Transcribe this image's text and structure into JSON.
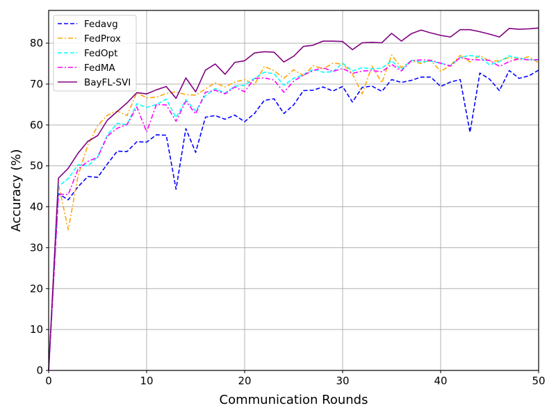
{
  "chart_data": {
    "type": "line",
    "title": "",
    "xlabel": "Communication Rounds",
    "ylabel": "Accuracy (%)",
    "xlim": [
      0,
      50
    ],
    "ylim": [
      0,
      88
    ],
    "xticks": [
      0,
      10,
      20,
      30,
      40,
      50
    ],
    "yticks": [
      0,
      10,
      20,
      30,
      40,
      50,
      60,
      70,
      80
    ],
    "grid": true,
    "legend_position": "top-left",
    "x": [
      0,
      1,
      2,
      3,
      4,
      5,
      6,
      7,
      8,
      9,
      10,
      11,
      12,
      13,
      14,
      15,
      16,
      17,
      18,
      19,
      20,
      21,
      22,
      23,
      24,
      25,
      26,
      27,
      28,
      29,
      30,
      31,
      32,
      33,
      34,
      35,
      36,
      37,
      38,
      39,
      40,
      41,
      42,
      43,
      44,
      45,
      46,
      47,
      48,
      49,
      50
    ],
    "series": [
      {
        "name": "Fedavg",
        "color": "#0000ff",
        "linestyle": "dashed",
        "values": [
          0,
          43.2,
          41.7,
          44.9,
          47.4,
          47.2,
          50.5,
          53.6,
          53.5,
          55.9,
          55.8,
          57.6,
          57.5,
          44.3,
          59.1,
          53.3,
          61.9,
          62.3,
          61.4,
          62.4,
          60.8,
          62.8,
          66.0,
          66.4,
          62.8,
          64.9,
          68.4,
          68.5,
          69.3,
          68.3,
          69.4,
          65.6,
          69.2,
          69.5,
          68.2,
          71.1,
          70.4,
          70.9,
          71.7,
          71.7,
          69.4,
          70.5,
          71.1,
          58.2,
          72.7,
          71.2,
          68.4,
          73.3,
          71.4,
          72.0,
          73.4
        ]
      },
      {
        "name": "FedProx",
        "color": "#ffa500",
        "linestyle": "dashdot",
        "values": [
          0,
          45.5,
          34.4,
          47.6,
          55.1,
          59.8,
          62.4,
          63.4,
          62.3,
          67.9,
          66.6,
          66.8,
          67.7,
          68.1,
          67.4,
          67.3,
          68.8,
          70.3,
          69.3,
          70.5,
          71.1,
          69.8,
          74.3,
          73.3,
          71.4,
          73.5,
          72.1,
          74.5,
          73.7,
          75.1,
          74.9,
          72.5,
          67.6,
          74.4,
          70.3,
          77.1,
          74.0,
          75.7,
          75.0,
          75.8,
          73.1,
          74.6,
          77.0,
          75.4,
          77.0,
          75.6,
          75.7,
          76.5,
          76.0,
          76.7,
          75.2
        ]
      },
      {
        "name": "FedOpt",
        "color": "#00ffff",
        "linestyle": "dashed",
        "values": [
          0,
          45.0,
          46.9,
          50.3,
          50.0,
          52.2,
          57.6,
          60.4,
          60.1,
          65.2,
          64.3,
          65.0,
          66.3,
          61.8,
          66.2,
          63.4,
          67.2,
          68.9,
          67.8,
          69.5,
          69.7,
          71.4,
          72.9,
          72.5,
          69.7,
          71.4,
          72.3,
          73.6,
          72.9,
          73.0,
          75.1,
          73.2,
          74.0,
          73.7,
          73.9,
          75.7,
          73.5,
          75.8,
          75.4,
          75.6,
          75.1,
          74.5,
          76.5,
          77.0,
          76.6,
          74.7,
          75.5,
          76.9,
          76.3,
          76.0,
          75.8
        ]
      },
      {
        "name": "FedMA",
        "color": "#ff00ff",
        "linestyle": "dashdot",
        "values": [
          0,
          43.1,
          43.0,
          49.2,
          51.1,
          52.1,
          57.3,
          59.2,
          60.1,
          64.4,
          58.3,
          65.0,
          64.9,
          60.9,
          65.8,
          62.7,
          68.0,
          68.5,
          67.6,
          69.3,
          68.1,
          71.4,
          71.5,
          71.0,
          68.0,
          70.7,
          72.2,
          73.3,
          74.0,
          73.1,
          73.8,
          72.6,
          73.2,
          73.3,
          73.0,
          74.8,
          73.2,
          75.7,
          75.9,
          75.8,
          75.1,
          74.4,
          76.5,
          76.0,
          75.9,
          75.8,
          74.3,
          75.5,
          76.2,
          75.9,
          76.0
        ]
      },
      {
        "name": "BayFL-SVI",
        "color": "#800080",
        "linestyle": "solid",
        "values": [
          0,
          47.0,
          49.4,
          53.1,
          56.0,
          57.4,
          61.2,
          63.3,
          65.4,
          67.9,
          67.6,
          68.6,
          69.4,
          66.5,
          71.5,
          68.1,
          73.4,
          74.9,
          72.4,
          75.3,
          75.7,
          77.6,
          77.9,
          77.8,
          75.4,
          76.8,
          79.2,
          79.5,
          80.5,
          80.5,
          80.4,
          78.4,
          80.1,
          80.2,
          80.1,
          82.4,
          80.5,
          82.3,
          83.2,
          82.5,
          81.9,
          81.5,
          83.3,
          83.3,
          82.8,
          82.2,
          81.5,
          83.6,
          83.4,
          83.5,
          83.7
        ]
      }
    ]
  }
}
